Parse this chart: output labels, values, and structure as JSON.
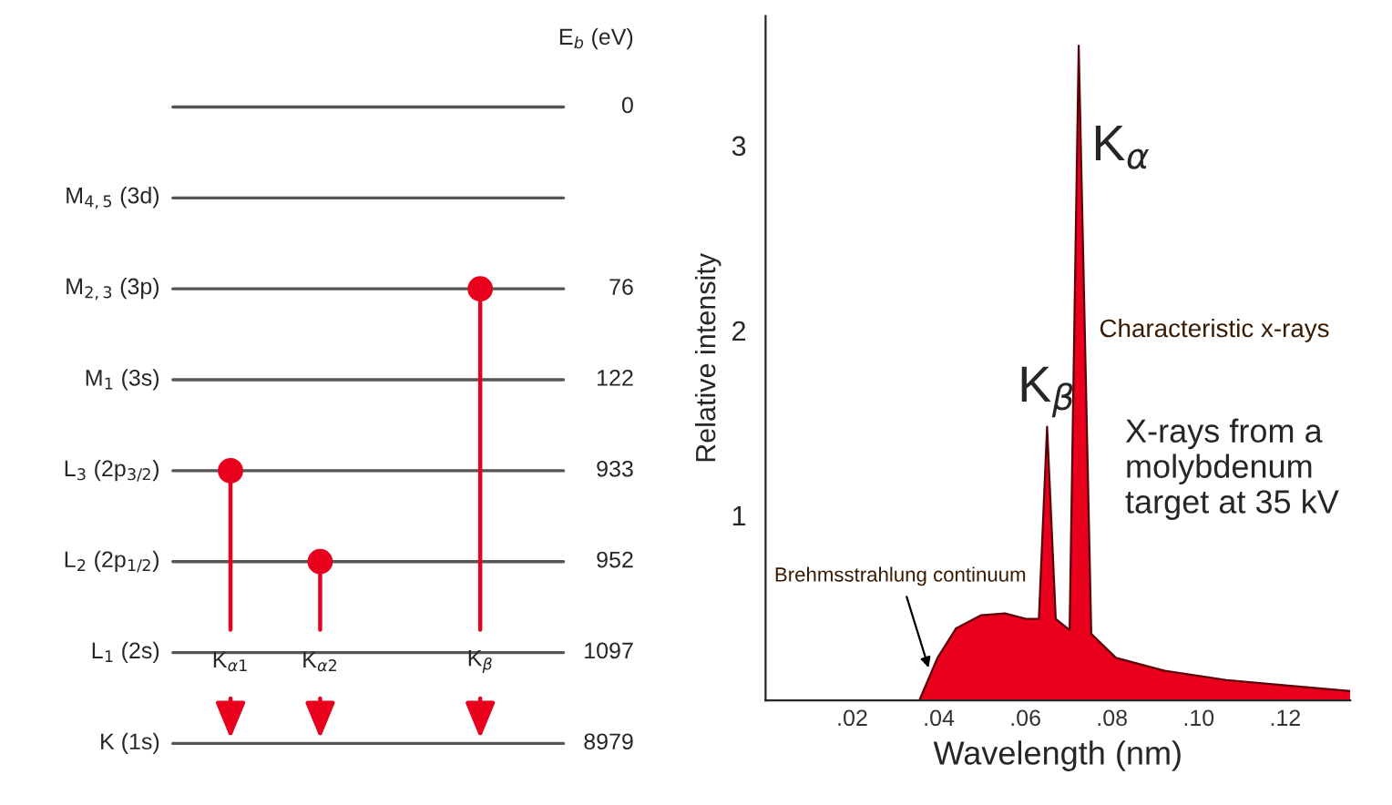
{
  "chart_data": [
    {
      "type": "other",
      "ylabel": "E$_{b}$ (eV)",
      "categories": [
        null,
        "M$_{4,5}$ (3d)",
        "M$_{2,3}$ (3p)",
        "M$_{1}$ (3s)",
        "L$_{3}$ (2p$_{3/2}$)",
        "L$_{2}$ (2p$_{1/2}$)",
        "L$_{1}$ (2s)",
        "K (1s)"
      ],
      "values": [
        0,
        null,
        76,
        122,
        933,
        952,
        1097,
        8979
      ],
      "color": "#e8001c",
      "data_labels": true,
      "annotations": [
        {
          "text": "K$_{α1}$",
          "y": "L$_{3}$ (2p$_{3/2}$)"
        },
        {
          "text": "K$_{α2}$",
          "y": "L$_{2}$ (2p$_{1/2}$)"
        },
        {
          "text": "K$_{β}$",
          "y": "M$_{2,3}$ (3p)"
        }
      ]
    },
    {
      "type": "area",
      "xlabel": "Wavelength (nm)",
      "ylabel": "Relative intensity",
      "x": [
        0.0355,
        0.0397,
        0.044,
        0.0497,
        0.0553,
        0.0603,
        0.0631,
        0.065,
        0.067,
        0.0702,
        0.0723,
        0.0752,
        0.0809,
        0.0922,
        0.1064,
        0.1206,
        0.135
      ],
      "series": [
        {
          "color": "#e8001c",
          "values": [
            0,
            0.23,
            0.39,
            0.46,
            0.47,
            0.44,
            0.44,
            1.48,
            0.44,
            0.38,
            3.54,
            0.36,
            0.23,
            0.16,
            0.11,
            0.08,
            0.05
          ]
        }
      ],
      "xlim": [
        0,
        0.135
      ],
      "ylim": [
        0,
        3.7
      ],
      "xticks": [
        {
          "value": 0.02,
          "label": ".02"
        },
        {
          "value": 0.04,
          "label": ".04"
        },
        {
          "value": 0.06,
          "label": ".06"
        },
        {
          "value": 0.08,
          "label": ".08"
        },
        {
          "value": 0.1,
          "label": ".10"
        },
        {
          "value": 0.12,
          "label": ".12"
        }
      ],
      "yticks": [
        1,
        2,
        3
      ],
      "grid": false,
      "annotations": [
        {
          "text": "K$_{α}$",
          "x": 0.0723,
          "y": 3.54
        },
        {
          "text": "K$_{β}$",
          "x": 0.065,
          "y": 1.48
        },
        "Characteristic x-rays",
        "X-rays from a molybdenum target at 35 kV",
        {
          "text": "Brehmsstrahlung continuum",
          "x": 0.038,
          "y": 0.15
        }
      ]
    }
  ]
}
